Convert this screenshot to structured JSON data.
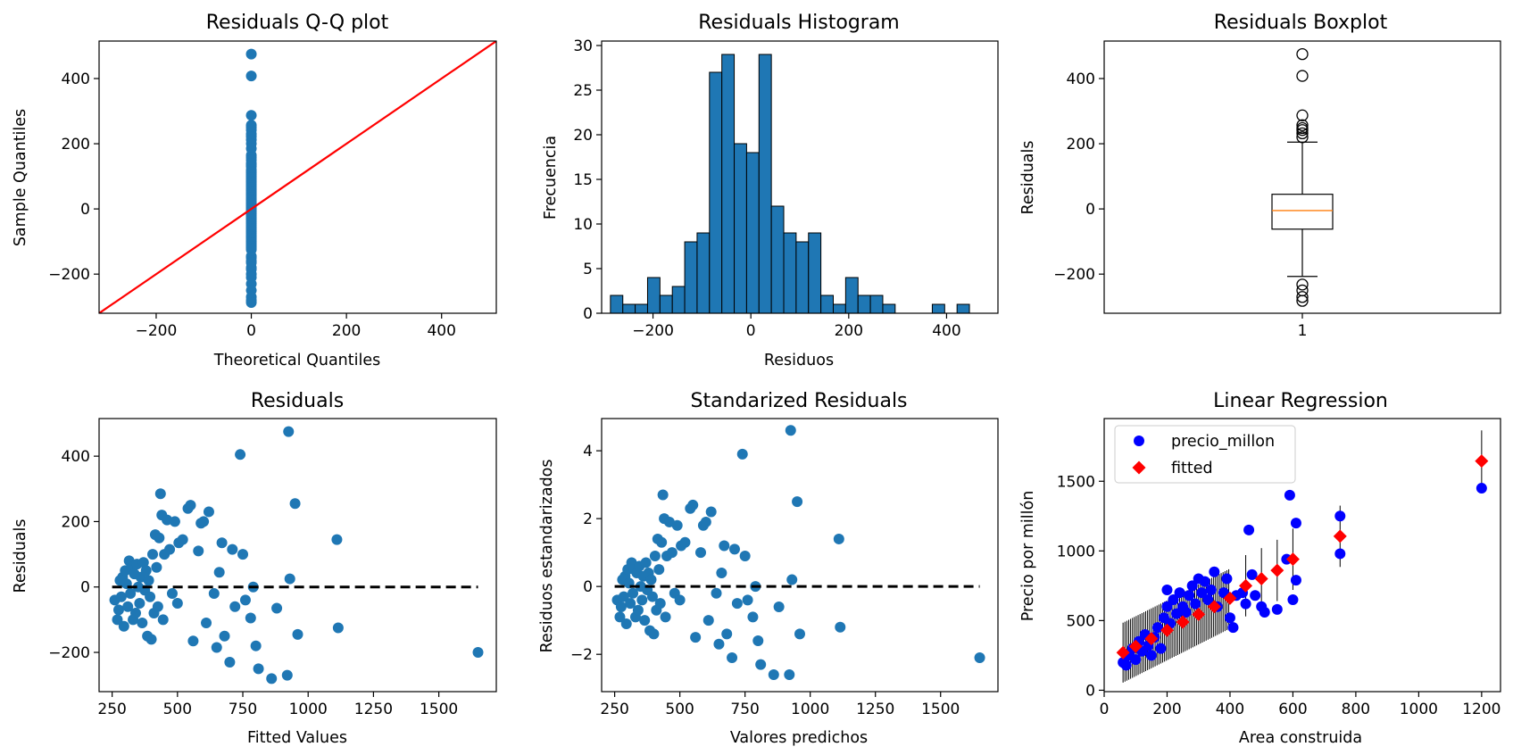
{
  "colors": {
    "blue": "#1f77b4",
    "red": "#ff0000",
    "orange": "#ff7f0e",
    "pure_blue": "#0000ff",
    "black": "#000000"
  },
  "chart_data": [
    {
      "type": "scatter",
      "title": "Residuals Q-Q plot",
      "xlabel": "Theoretical Quantiles",
      "ylabel": "Sample Quantiles",
      "xlim": [
        -320,
        515
      ],
      "ylim": [
        -320,
        515
      ],
      "xticks": [
        -200,
        0,
        200,
        400
      ],
      "yticks": [
        -200,
        0,
        200,
        400
      ],
      "tick_labels_x": [
        "−200",
        "0",
        "200",
        "400"
      ],
      "tick_labels_y": [
        "−200",
        "0",
        "200",
        "400"
      ],
      "reference_line": {
        "color": "#ff0000",
        "slope": 1,
        "intercept": 0
      },
      "points_y": [
        475,
        408,
        287,
        257,
        250,
        242,
        230,
        222,
        212,
        200,
        185,
        165,
        158,
        150,
        140,
        135,
        130,
        120,
        115,
        110,
        105,
        100,
        95,
        90,
        85,
        80,
        75,
        70,
        65,
        60,
        55,
        50,
        45,
        40,
        35,
        30,
        25,
        20,
        15,
        10,
        5,
        0,
        -5,
        -10,
        -15,
        -20,
        -25,
        -30,
        -35,
        -40,
        -45,
        -50,
        -55,
        -60,
        -65,
        -70,
        -75,
        -80,
        -85,
        -90,
        -95,
        -100,
        -105,
        -110,
        -115,
        -120,
        -125,
        -145,
        -150,
        -160,
        -165,
        -180,
        -185,
        -200,
        -210,
        -230,
        -250,
        -270,
        -280,
        -287
      ]
    },
    {
      "type": "bar",
      "title": "Residuals Histogram",
      "xlabel": "Residuos",
      "ylabel": "Frecuencia",
      "xlim": [
        -305,
        505
      ],
      "ylim": [
        0,
        30.5
      ],
      "xticks": [
        -200,
        0,
        200,
        400
      ],
      "yticks": [
        0,
        5,
        10,
        15,
        20,
        25,
        30
      ],
      "tick_labels_x": [
        "−200",
        "0",
        "200",
        "400"
      ],
      "tick_labels_y": [
        "0",
        "5",
        "10",
        "15",
        "20",
        "25",
        "30"
      ],
      "bin_start": -287,
      "bin_width": 25.3,
      "counts": [
        2,
        1,
        1,
        4,
        2,
        3,
        8,
        9,
        27,
        29,
        19,
        18,
        29,
        12,
        9,
        8,
        9,
        2,
        1,
        4,
        2,
        2,
        1,
        0,
        0,
        0,
        1,
        0,
        1
      ]
    },
    {
      "type": "box",
      "title": "Residuals Boxplot",
      "xlabel": "",
      "ylabel": "Residuals",
      "ylim": [
        -320,
        515
      ],
      "xticks": [
        "1"
      ],
      "yticks": [
        -200,
        0,
        200,
        400
      ],
      "tick_labels_y": [
        "−200",
        "0",
        "200",
        "400"
      ],
      "q1": -62,
      "median": -5,
      "q3": 45,
      "whisker_low": -207,
      "whisker_high": 205,
      "outliers": [
        475,
        408,
        287,
        257,
        248,
        242,
        232,
        220,
        -232,
        -250,
        -270,
        -282
      ]
    },
    {
      "type": "scatter",
      "title": "Residuals",
      "xlabel": "Fitted Values",
      "ylabel": "Residuals",
      "xlim": [
        200,
        1720
      ],
      "ylim": [
        -320,
        515
      ],
      "xticks": [
        250,
        500,
        750,
        1000,
        1250,
        1500
      ],
      "yticks": [
        -200,
        0,
        200,
        400
      ],
      "tick_labels_x": [
        "250",
        "500",
        "750",
        "1000",
        "1250",
        "1500"
      ],
      "tick_labels_y": [
        "−200",
        "0",
        "200",
        "400"
      ],
      "zero_line": {
        "from": 250,
        "to": 1650,
        "y": 0
      },
      "points": [
        [
          260,
          -40
        ],
        [
          270,
          -100
        ],
        [
          275,
          -70
        ],
        [
          280,
          20
        ],
        [
          285,
          -30
        ],
        [
          290,
          30
        ],
        [
          295,
          -120
        ],
        [
          300,
          50
        ],
        [
          305,
          10
        ],
        [
          310,
          -60
        ],
        [
          315,
          80
        ],
        [
          320,
          -20
        ],
        [
          325,
          60
        ],
        [
          330,
          -100
        ],
        [
          335,
          40
        ],
        [
          340,
          -80
        ],
        [
          345,
          70
        ],
        [
          350,
          0
        ],
        [
          355,
          -50
        ],
        [
          360,
          30
        ],
        [
          365,
          -110
        ],
        [
          370,
          75
        ],
        [
          375,
          -10
        ],
        [
          380,
          50
        ],
        [
          385,
          -150
        ],
        [
          390,
          20
        ],
        [
          395,
          -30
        ],
        [
          400,
          -160
        ],
        [
          405,
          100
        ],
        [
          410,
          -80
        ],
        [
          415,
          160
        ],
        [
          420,
          60
        ],
        [
          425,
          -60
        ],
        [
          430,
          150
        ],
        [
          435,
          285
        ],
        [
          440,
          220
        ],
        [
          445,
          -100
        ],
        [
          450,
          100
        ],
        [
          460,
          205
        ],
        [
          470,
          115
        ],
        [
          480,
          -20
        ],
        [
          490,
          200
        ],
        [
          500,
          -50
        ],
        [
          505,
          135
        ],
        [
          520,
          145
        ],
        [
          540,
          240
        ],
        [
          550,
          250
        ],
        [
          560,
          -165
        ],
        [
          580,
          110
        ],
        [
          590,
          195
        ],
        [
          600,
          200
        ],
        [
          610,
          -110
        ],
        [
          620,
          230
        ],
        [
          640,
          -20
        ],
        [
          650,
          -185
        ],
        [
          660,
          45
        ],
        [
          670,
          135
        ],
        [
          680,
          -150
        ],
        [
          700,
          -230
        ],
        [
          710,
          115
        ],
        [
          720,
          -60
        ],
        [
          740,
          405
        ],
        [
          750,
          100
        ],
        [
          760,
          -40
        ],
        [
          780,
          -95
        ],
        [
          790,
          0
        ],
        [
          800,
          -180
        ],
        [
          810,
          -250
        ],
        [
          860,
          -280
        ],
        [
          880,
          -65
        ],
        [
          920,
          -270
        ],
        [
          925,
          475
        ],
        [
          930,
          25
        ],
        [
          950,
          255
        ],
        [
          960,
          -145
        ],
        [
          1110,
          145
        ],
        [
          1115,
          -125
        ],
        [
          1650,
          -200
        ]
      ]
    },
    {
      "type": "scatter",
      "title": "Standarized Residuals",
      "xlabel": "Valores predichos",
      "ylabel": "Residuos estandarizados",
      "xlim": [
        200,
        1720
      ],
      "ylim": [
        -3.1,
        4.95
      ],
      "xticks": [
        250,
        500,
        750,
        1000,
        1250,
        1500
      ],
      "yticks": [
        -2,
        0,
        2,
        4
      ],
      "tick_labels_x": [
        "250",
        "500",
        "750",
        "1000",
        "1250",
        "1500"
      ],
      "tick_labels_y": [
        "−2",
        "0",
        "2",
        "4"
      ],
      "zero_line": {
        "from": 250,
        "to": 1650,
        "y": 0
      },
      "points": [
        [
          260,
          -0.4
        ],
        [
          270,
          -0.9
        ],
        [
          275,
          -0.6
        ],
        [
          280,
          0.2
        ],
        [
          285,
          -0.3
        ],
        [
          290,
          0.3
        ],
        [
          295,
          -1.1
        ],
        [
          300,
          0.5
        ],
        [
          305,
          0.1
        ],
        [
          310,
          -0.5
        ],
        [
          315,
          0.7
        ],
        [
          320,
          -0.2
        ],
        [
          325,
          0.5
        ],
        [
          330,
          -0.9
        ],
        [
          335,
          0.4
        ],
        [
          340,
          -0.7
        ],
        [
          345,
          0.6
        ],
        [
          350,
          0.0
        ],
        [
          355,
          -0.4
        ],
        [
          360,
          0.3
        ],
        [
          365,
          -1.0
        ],
        [
          370,
          0.7
        ],
        [
          375,
          -0.1
        ],
        [
          380,
          0.4
        ],
        [
          385,
          -1.3
        ],
        [
          390,
          0.2
        ],
        [
          395,
          -0.3
        ],
        [
          400,
          -1.4
        ],
        [
          405,
          0.9
        ],
        [
          410,
          -0.7
        ],
        [
          415,
          1.4
        ],
        [
          420,
          0.5
        ],
        [
          425,
          -0.5
        ],
        [
          430,
          1.3
        ],
        [
          435,
          2.7
        ],
        [
          440,
          2.0
        ],
        [
          445,
          -0.9
        ],
        [
          450,
          0.9
        ],
        [
          460,
          1.9
        ],
        [
          470,
          1.0
        ],
        [
          480,
          -0.2
        ],
        [
          490,
          1.8
        ],
        [
          500,
          -0.4
        ],
        [
          505,
          1.2
        ],
        [
          520,
          1.3
        ],
        [
          540,
          2.3
        ],
        [
          550,
          2.4
        ],
        [
          560,
          -1.5
        ],
        [
          580,
          1.0
        ],
        [
          590,
          1.8
        ],
        [
          600,
          1.9
        ],
        [
          610,
          -1.0
        ],
        [
          620,
          2.2
        ],
        [
          640,
          -0.2
        ],
        [
          650,
          -1.7
        ],
        [
          660,
          0.4
        ],
        [
          670,
          1.2
        ],
        [
          680,
          -1.4
        ],
        [
          700,
          -2.1
        ],
        [
          710,
          1.1
        ],
        [
          720,
          -0.5
        ],
        [
          740,
          3.9
        ],
        [
          750,
          0.9
        ],
        [
          760,
          -0.4
        ],
        [
          780,
          -0.9
        ],
        [
          790,
          0.0
        ],
        [
          800,
          -1.6
        ],
        [
          810,
          -2.3
        ],
        [
          860,
          -2.6
        ],
        [
          880,
          -0.6
        ],
        [
          920,
          -2.6
        ],
        [
          925,
          4.6
        ],
        [
          930,
          0.2
        ],
        [
          950,
          2.5
        ],
        [
          960,
          -1.4
        ],
        [
          1110,
          1.4
        ],
        [
          1115,
          -1.2
        ],
        [
          1650,
          -2.1
        ]
      ]
    },
    {
      "type": "scatter",
      "title": "Linear Regression",
      "xlabel": "Area construida",
      "ylabel": "Precio por millón",
      "xlim": [
        0,
        1260
      ],
      "ylim": [
        -10,
        1950
      ],
      "xticks": [
        0,
        200,
        400,
        600,
        800,
        1000,
        1200
      ],
      "yticks": [
        0,
        500,
        1000,
        1500
      ],
      "tick_labels_x": [
        "0",
        "200",
        "400",
        "600",
        "800",
        "1000",
        "1200"
      ],
      "tick_labels_y": [
        "0",
        "500",
        "1000",
        "1500"
      ],
      "legend": [
        "precio_millon",
        "fitted"
      ],
      "legend_position": "upper left",
      "fit": {
        "slope": 1.14,
        "intercept": 270,
        "from": 60,
        "to": 1200
      },
      "series": [
        {
          "name": "precio_millon",
          "points": [
            [
              60,
              200
            ],
            [
              70,
              180
            ],
            [
              80,
              250
            ],
            [
              90,
              300
            ],
            [
              100,
              220
            ],
            [
              110,
              350
            ],
            [
              120,
              280
            ],
            [
              130,
              400
            ],
            [
              140,
              320
            ],
            [
              150,
              250
            ],
            [
              160,
              380
            ],
            [
              170,
              450
            ],
            [
              180,
              300
            ],
            [
              190,
              520
            ],
            [
              200,
              600
            ],
            [
              200,
              720
            ],
            [
              210,
              480
            ],
            [
              220,
              650
            ],
            [
              230,
              550
            ],
            [
              240,
              700
            ],
            [
              250,
              600
            ],
            [
              260,
              560
            ],
            [
              270,
              680
            ],
            [
              280,
              750
            ],
            [
              290,
              620
            ],
            [
              300,
              800
            ],
            [
              310,
              700
            ],
            [
              320,
              780
            ],
            [
              330,
              650
            ],
            [
              340,
              720
            ],
            [
              350,
              850
            ],
            [
              360,
              600
            ],
            [
              380,
              700
            ],
            [
              390,
              800
            ],
            [
              400,
              520
            ],
            [
              410,
              450
            ],
            [
              420,
              680
            ],
            [
              440,
              700
            ],
            [
              450,
              620
            ],
            [
              460,
              1150
            ],
            [
              470,
              830
            ],
            [
              480,
              680
            ],
            [
              500,
              600
            ],
            [
              510,
              560
            ],
            [
              550,
              580
            ],
            [
              580,
              940
            ],
            [
              590,
              1400
            ],
            [
              600,
              650
            ],
            [
              610,
              790
            ],
            [
              610,
              1200
            ],
            [
              750,
              1250
            ],
            [
              750,
              980
            ],
            [
              1200,
              1450
            ]
          ]
        },
        {
          "name": "fitted",
          "points": [
            [
              60,
              270
            ],
            [
              100,
              315
            ],
            [
              150,
              370
            ],
            [
              200,
              430
            ],
            [
              250,
              490
            ],
            [
              300,
              545
            ],
            [
              350,
              600
            ],
            [
              400,
              660
            ],
            [
              450,
              750
            ],
            [
              500,
              800
            ],
            [
              550,
              860
            ],
            [
              600,
              940
            ],
            [
              750,
              1105
            ],
            [
              1200,
              1645
            ]
          ]
        }
      ]
    }
  ]
}
